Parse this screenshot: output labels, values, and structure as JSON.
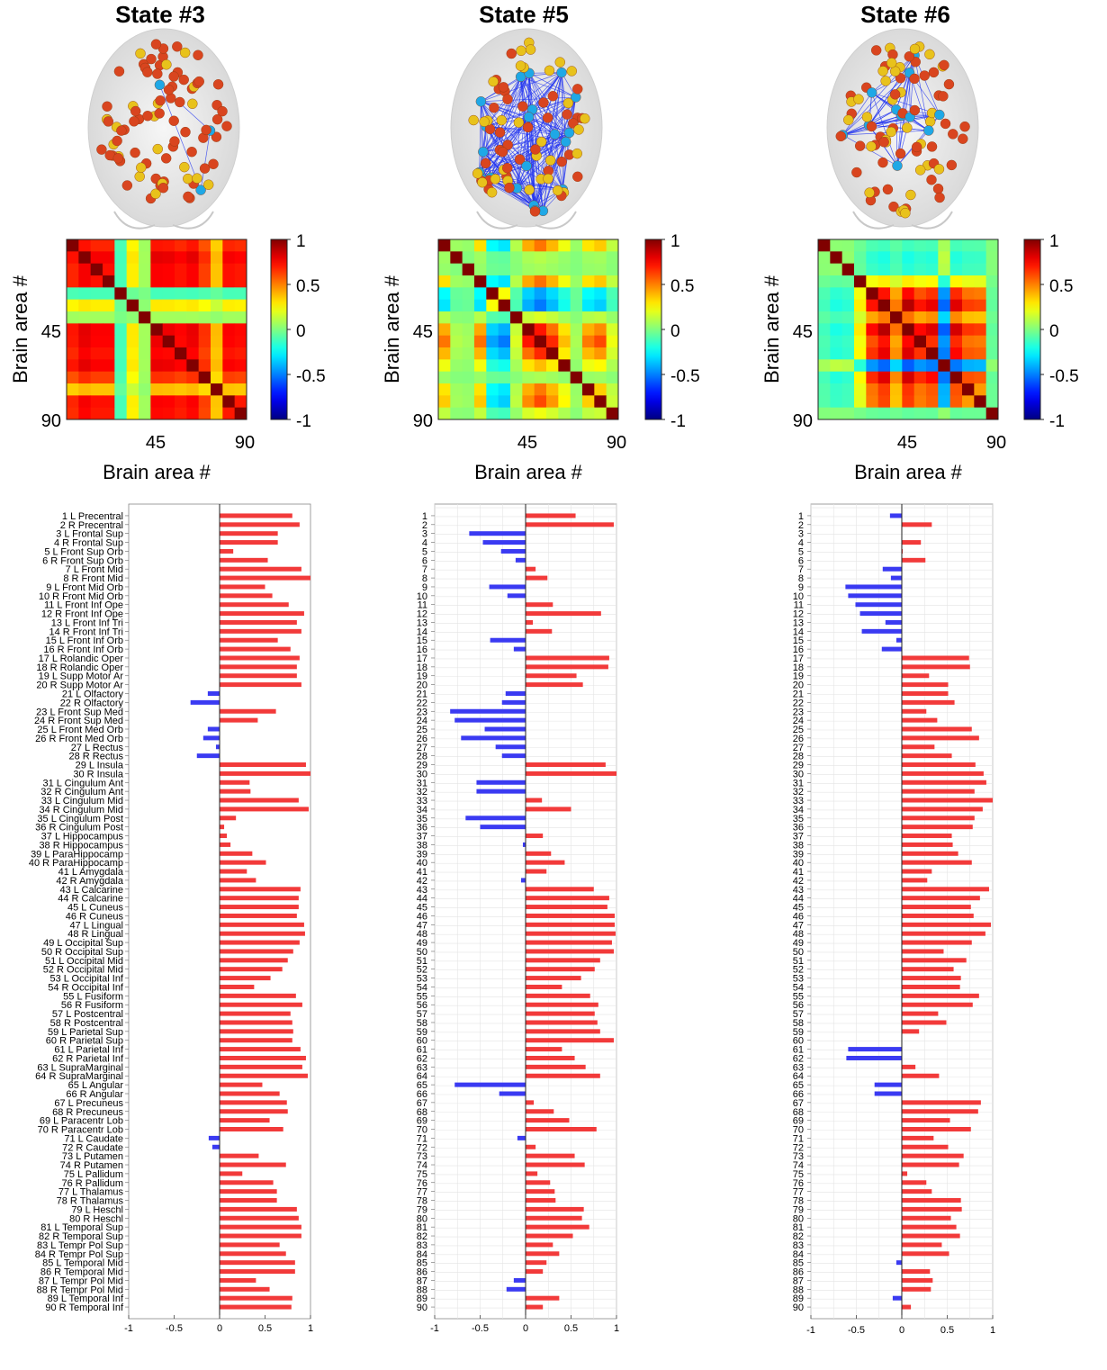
{
  "colorbar": {
    "ticks": [
      "1",
      "0.5",
      "0",
      "-0.5",
      "-1"
    ]
  },
  "matrix_axis": {
    "tick_45": "45",
    "tick_90": "90",
    "ylabel": "Brain area #",
    "xlabel": "Brain area #"
  },
  "regions": [
    "1 L Precentral",
    "2 R Precentral",
    "3 L Frontal Sup",
    "4 R Frontal Sup",
    "5 L Front Sup Orb",
    "6 R Front Sup Orb",
    "7 L Front Mid",
    "8 R Front Mid",
    "9 L Front Mid Orb",
    "10 R Front Mid Orb",
    "11 L Front Inf Ope",
    "12 R Front Inf Ope",
    "13 L Front Inf Tri",
    "14 R Front Inf Tri",
    "15 L Front Inf Orb",
    "16 R Front Inf Orb",
    "17 L Rolandic Oper",
    "18 R Rolandic Oper",
    "19 L Supp Motor Ar",
    "20 R Supp Motor Ar",
    "21 L Olfactory",
    "22 R Olfactory",
    "23 L Front Sup Med",
    "24 R Front Sup Med",
    "25 L Front Med Orb",
    "26 R Front Med Orb",
    "27 L Rectus",
    "28 R Rectus",
    "29 L Insula",
    "30 R Insula",
    "31 L Cingulum Ant",
    "32 R Cingulum Ant",
    "33 L Cingulum Mid",
    "34 R Cingulum Mid",
    "35 L Cingulum Post",
    "36 R Cingulum Post",
    "37 L Hippocampus",
    "38 R Hippocampus",
    "39 L ParaHippocamp",
    "40 R ParaHippocamp",
    "41 L Amygdala",
    "42 R Amygdala",
    "43 L Calcarine",
    "44 R Calcarine",
    "45 L Cuneus",
    "46 R Cuneus",
    "47 L Lingual",
    "48 R Lingual",
    "49 L Occipital Sup",
    "50 R Occipital Sup",
    "51 L Occipital Mid",
    "52 R Occipital Mid",
    "53 L Occipital Inf",
    "54 R Occipital Inf",
    "55 L Fusiform",
    "56 R Fusiform",
    "57 L Postcentral",
    "58 R Postcentral",
    "59 L Parietal Sup",
    "60 R Parietal Sup",
    "61 L Parietal Inf",
    "62 R Parietal Inf",
    "63 L SupraMarginal",
    "64 R SupraMarginal",
    "65 L Angular",
    "66 R Angular",
    "67 L Precuneus",
    "68 R Precuneus",
    "69 L Paracentr Lob",
    "70 R Paracentr Lob",
    "71 L Caudate",
    "72 R Caudate",
    "73 L Putamen",
    "74 R Putamen",
    "75 L Pallidum",
    "76 R Pallidum",
    "77 L Thalamus",
    "78 R Thalamus",
    "79 L Heschl",
    "80 R Heschl",
    "81 L Temporal Sup",
    "82 R Temporal Sup",
    "83 L Tempr Pol Sup",
    "84 R Tempr Pol Sup",
    "85 L Temporal Mid",
    "86 R Temporal Mid",
    "87 L Tempr Pol Mid",
    "88 R Tempr Pol Mid",
    "89 L Temporal Inf",
    "90 R Temporal Inf"
  ],
  "chart_data": [
    {
      "type": "bar",
      "orientation": "horizontal",
      "title": "State #3",
      "xlim": [
        -1,
        1
      ],
      "xticks": [
        "-1",
        "-0.5",
        "0",
        "0.5",
        "1"
      ],
      "values": [
        0.8,
        0.88,
        0.64,
        0.64,
        0.15,
        0.53,
        0.9,
        1.0,
        0.5,
        0.58,
        0.76,
        0.93,
        0.85,
        0.9,
        0.64,
        0.78,
        0.88,
        0.85,
        0.85,
        0.9,
        -0.13,
        -0.32,
        0.62,
        0.42,
        -0.13,
        -0.18,
        -0.04,
        -0.25,
        0.95,
        1.0,
        0.33,
        0.34,
        0.87,
        0.98,
        0.18,
        0.05,
        0.08,
        0.12,
        0.36,
        0.51,
        0.3,
        0.4,
        0.89,
        0.87,
        0.87,
        0.85,
        0.93,
        0.94,
        0.88,
        0.81,
        0.75,
        0.69,
        0.56,
        0.38,
        0.84,
        0.91,
        0.78,
        0.8,
        0.81,
        0.8,
        0.89,
        0.95,
        0.91,
        0.97,
        0.47,
        0.66,
        0.74,
        0.75,
        0.55,
        0.7,
        -0.12,
        -0.08,
        0.43,
        0.73,
        0.25,
        0.59,
        0.63,
        0.63,
        0.85,
        0.87,
        0.9,
        0.9,
        0.66,
        0.73,
        0.83,
        0.83,
        0.4,
        0.55,
        0.8,
        0.79
      ]
    },
    {
      "type": "bar",
      "orientation": "horizontal",
      "title": "State #5",
      "xlim": [
        -1,
        1
      ],
      "xticks": [
        "-1",
        "-0.5",
        "0",
        "0.5",
        "1"
      ],
      "values": [
        0.55,
        0.97,
        -0.62,
        -0.47,
        -0.27,
        -0.11,
        0.11,
        0.24,
        -0.4,
        -0.2,
        0.3,
        0.83,
        0.08,
        0.29,
        -0.39,
        -0.13,
        0.92,
        0.91,
        0.56,
        0.63,
        -0.22,
        -0.26,
        -0.83,
        -0.78,
        -0.45,
        -0.71,
        -0.33,
        -0.26,
        0.88,
        1.0,
        -0.54,
        -0.54,
        0.18,
        0.5,
        -0.66,
        -0.5,
        0.19,
        -0.03,
        0.28,
        0.43,
        0.23,
        -0.05,
        0.75,
        0.92,
        0.9,
        0.98,
        0.98,
        0.99,
        0.95,
        0.97,
        0.82,
        0.76,
        0.61,
        0.4,
        0.71,
        0.8,
        0.76,
        0.79,
        0.82,
        0.97,
        0.4,
        0.54,
        0.66,
        0.82,
        -0.78,
        -0.29,
        0.09,
        0.31,
        0.48,
        0.78,
        -0.09,
        0.11,
        0.54,
        0.65,
        0.13,
        0.27,
        0.32,
        0.33,
        0.64,
        0.62,
        0.7,
        0.52,
        0.3,
        0.37,
        0.23,
        0.19,
        -0.13,
        -0.21,
        0.37,
        0.19
      ]
    },
    {
      "type": "bar",
      "orientation": "horizontal",
      "title": "State #6",
      "xlim": [
        -1,
        1
      ],
      "xticks": [
        "-1",
        "-0.5",
        "0",
        "0.5",
        "1"
      ],
      "values": [
        -0.13,
        0.33,
        0.0,
        0.21,
        0.01,
        0.26,
        -0.21,
        -0.12,
        -0.62,
        -0.59,
        -0.51,
        -0.46,
        -0.18,
        -0.44,
        -0.06,
        -0.22,
        0.74,
        0.75,
        0.3,
        0.51,
        0.51,
        0.58,
        0.27,
        0.39,
        0.77,
        0.85,
        0.36,
        0.55,
        0.81,
        0.9,
        0.93,
        0.8,
        1.0,
        0.89,
        0.8,
        0.78,
        0.55,
        0.56,
        0.62,
        0.77,
        0.33,
        0.28,
        0.96,
        0.86,
        0.76,
        0.79,
        0.98,
        0.92,
        0.77,
        0.46,
        0.71,
        0.57,
        0.65,
        0.64,
        0.85,
        0.78,
        0.4,
        0.49,
        0.19,
        0.0,
        -0.59,
        -0.61,
        0.15,
        0.41,
        -0.3,
        -0.3,
        0.87,
        0.84,
        0.53,
        0.76,
        0.35,
        0.51,
        0.68,
        0.63,
        0.06,
        0.27,
        0.33,
        0.65,
        0.66,
        0.54,
        0.6,
        0.64,
        0.44,
        0.52,
        -0.06,
        0.31,
        0.34,
        0.32,
        -0.1,
        0.1
      ]
    }
  ]
}
